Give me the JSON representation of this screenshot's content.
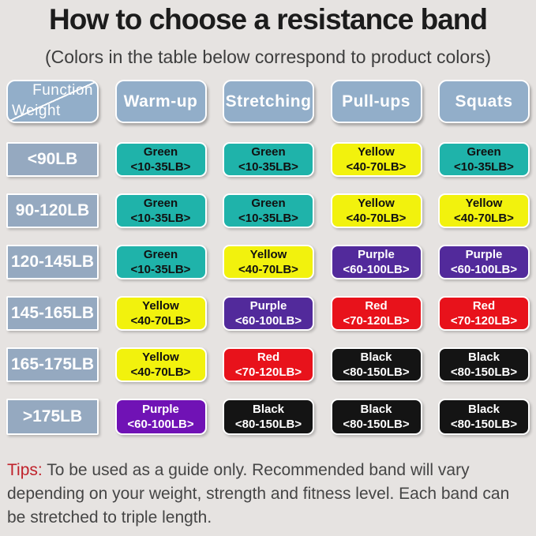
{
  "page": {
    "background": "#e6e3e1"
  },
  "header": {
    "title": "How to choose a resistance band",
    "subtitle": "(Colors in the table below correspond to product colors)"
  },
  "table": {
    "header_bg": "#92aec9",
    "weight_bg": "#95a9c0",
    "corner": {
      "top_label": "Function",
      "bottom_label": "Weight"
    },
    "columns": [
      "Warm-up",
      "Stretching",
      "Pull-ups",
      "Squats"
    ],
    "palette": {
      "green": {
        "bg": "#1fb3aa",
        "fg": "#111111"
      },
      "yellow": {
        "bg": "#f2f20d",
        "fg": "#111111"
      },
      "purple": {
        "bg": "#522a9b",
        "fg": "#ffffff"
      },
      "purple_bright": {
        "bg": "#7012b5",
        "fg": "#ffffff"
      },
      "red": {
        "bg": "#e8121b",
        "fg": "#ffffff"
      },
      "black": {
        "bg": "#141414",
        "fg": "#ffffff"
      }
    },
    "rows": [
      {
        "weight": "<90LB",
        "cells": [
          {
            "name": "Green",
            "range": "<10-35LB>",
            "color": "green"
          },
          {
            "name": "Green",
            "range": "<10-35LB>",
            "color": "green"
          },
          {
            "name": "Yellow",
            "range": "<40-70LB>",
            "color": "yellow"
          },
          {
            "name": "Green",
            "range": "<10-35LB>",
            "color": "green"
          }
        ]
      },
      {
        "weight": "90-120LB",
        "cells": [
          {
            "name": "Green",
            "range": "<10-35LB>",
            "color": "green"
          },
          {
            "name": "Green",
            "range": "<10-35LB>",
            "color": "green"
          },
          {
            "name": "Yellow",
            "range": "<40-70LB>",
            "color": "yellow"
          },
          {
            "name": "Yellow",
            "range": "<40-70LB>",
            "color": "yellow"
          }
        ]
      },
      {
        "weight": "120-145LB",
        "cells": [
          {
            "name": "Green",
            "range": "<10-35LB>",
            "color": "green"
          },
          {
            "name": "Yellow",
            "range": "<40-70LB>",
            "color": "yellow"
          },
          {
            "name": "Purple",
            "range": "<60-100LB>",
            "color": "purple"
          },
          {
            "name": "Purple",
            "range": "<60-100LB>",
            "color": "purple"
          }
        ]
      },
      {
        "weight": "145-165LB",
        "cells": [
          {
            "name": "Yellow",
            "range": "<40-70LB>",
            "color": "yellow"
          },
          {
            "name": "Purple",
            "range": "<60-100LB>",
            "color": "purple"
          },
          {
            "name": "Red",
            "range": "<70-120LB>",
            "color": "red"
          },
          {
            "name": "Red",
            "range": "<70-120LB>",
            "color": "red"
          }
        ]
      },
      {
        "weight": "165-175LB",
        "cells": [
          {
            "name": "Yellow",
            "range": "<40-70LB>",
            "color": "yellow"
          },
          {
            "name": "Red",
            "range": "<70-120LB>",
            "color": "red"
          },
          {
            "name": "Black",
            "range": "<80-150LB>",
            "color": "black"
          },
          {
            "name": "Black",
            "range": "<80-150LB>",
            "color": "black"
          }
        ]
      },
      {
        "weight": ">175LB",
        "cells": [
          {
            "name": "Purple",
            "range": "<60-100LB>",
            "color": "purple_bright"
          },
          {
            "name": "Black",
            "range": "<80-150LB>",
            "color": "black"
          },
          {
            "name": "Black",
            "range": "<80-150LB>",
            "color": "black"
          },
          {
            "name": "Black",
            "range": "<80-150LB>",
            "color": "black"
          }
        ]
      }
    ]
  },
  "tips": {
    "label": "Tips:",
    "label_color": "#c0222b",
    "text": " To be used as a guide only. Recommended band will vary depending on your weight, strength and fitness level. Each band can be stretched to triple length."
  }
}
